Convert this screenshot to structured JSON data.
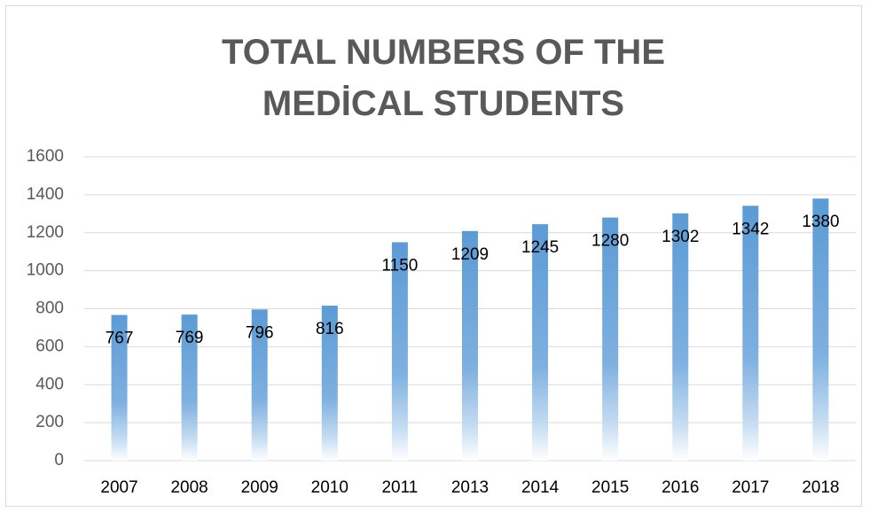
{
  "chart_data": {
    "type": "bar",
    "title": "TOTAL NUMBERS OF THE MEDİCAL STUDENTS",
    "categories": [
      "2007",
      "2008",
      "2009",
      "2010",
      "2011",
      "2013",
      "2014",
      "2015",
      "2016",
      "2017",
      "2018"
    ],
    "values": [
      767,
      769,
      796,
      816,
      1150,
      1209,
      1245,
      1280,
      1302,
      1342,
      1380
    ],
    "color": "#5b9bd5",
    "ylim": [
      0,
      1600
    ],
    "yticks": [
      0,
      200,
      400,
      600,
      800,
      1000,
      1200,
      1400,
      1600
    ],
    "grid": true
  }
}
